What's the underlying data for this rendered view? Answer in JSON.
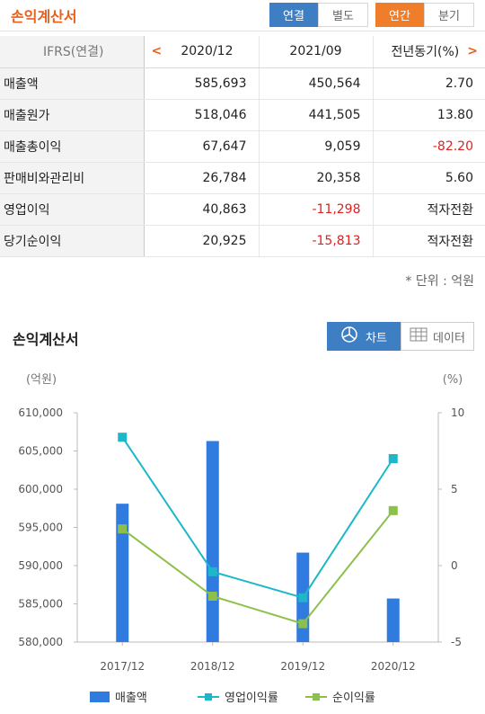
{
  "header": {
    "title": "손익계산서",
    "btn_consolidated": "연결",
    "btn_separate": "별도",
    "btn_annual": "연간",
    "btn_quarter": "분기"
  },
  "table": {
    "header_label": "IFRS(연결)",
    "columns": [
      "2020/12",
      "2021/09",
      "전년동기(%)"
    ],
    "rows": [
      {
        "label": "매출액",
        "values": [
          "585,693",
          "450,564",
          "2.70"
        ]
      },
      {
        "label": "매출원가",
        "values": [
          "518,046",
          "441,505",
          "13.80"
        ]
      },
      {
        "label": "매출총이익",
        "values": [
          "67,647",
          "9,059",
          "-82.20"
        ]
      },
      {
        "label": "판매비와관리비",
        "values": [
          "26,784",
          "20,358",
          "5.60"
        ]
      },
      {
        "label": "영업이익",
        "values": [
          "40,863",
          "-11,298",
          "적자전환"
        ]
      },
      {
        "label": "당기순이익",
        "values": [
          "20,925",
          "-15,813",
          "적자전환"
        ]
      }
    ],
    "unit_note": "* 단위 : 억원"
  },
  "section": {
    "title": "손익계산서",
    "chart_button": "차트",
    "data_button": "데이터"
  },
  "colors": {
    "orange": "#e8601c",
    "blue": "#3e7fc4",
    "bar": "#2f7be0",
    "line1": "#1cb8c9",
    "line2": "#8cc04a",
    "negative": "#e02020"
  },
  "chart_data": {
    "type": "bar+line",
    "categories": [
      "2017/12",
      "2018/12",
      "2019/12",
      "2020/12"
    ],
    "left_axis_label": "(억원)",
    "right_axis_label": "(%)",
    "ylim_left": [
      580000,
      610000
    ],
    "yticks_left": [
      "610,000",
      "605,000",
      "600,000",
      "595,000",
      "590,000",
      "585,000",
      "580,000"
    ],
    "ylim_right": [
      -5,
      10
    ],
    "yticks_right": [
      "10",
      "5",
      "0",
      "-5"
    ],
    "series": [
      {
        "name": "매출액",
        "type": "bar",
        "axis": "left",
        "values": [
          598100,
          606300,
          591700,
          585700
        ]
      },
      {
        "name": "영업이익률",
        "type": "line",
        "axis": "right",
        "values": [
          8.4,
          -0.4,
          -2.1,
          7.0
        ]
      },
      {
        "name": "순이익률",
        "type": "line",
        "axis": "right",
        "values": [
          2.4,
          -2.0,
          -3.8,
          3.6
        ]
      }
    ]
  }
}
